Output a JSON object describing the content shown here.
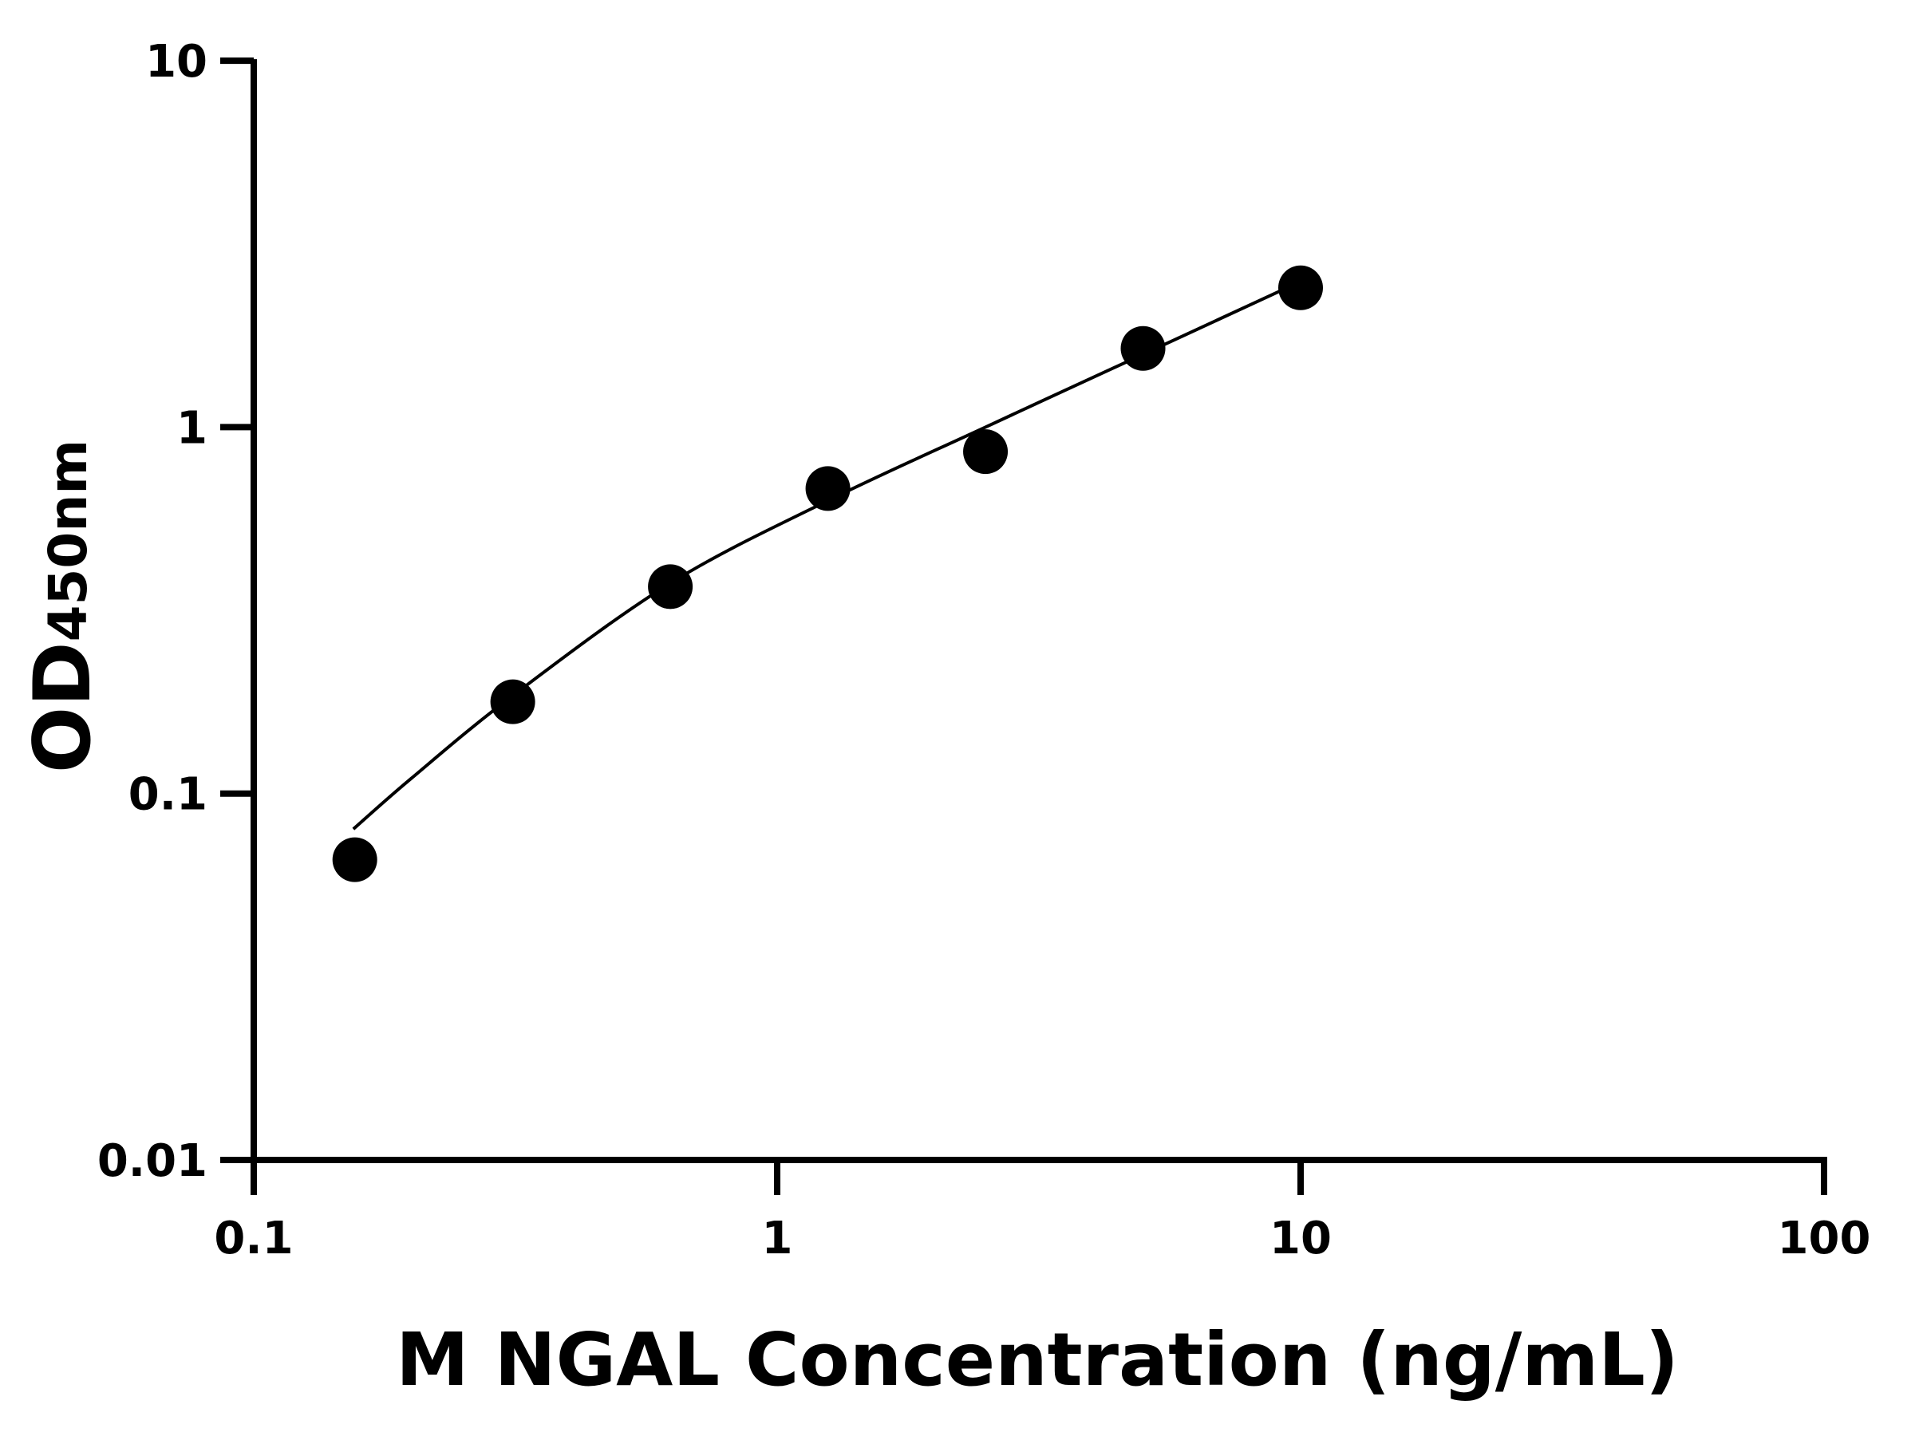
{
  "chart_data": {
    "type": "scatter",
    "title": "",
    "xlabel": "M NGAL Concentration (ng/mL)",
    "ylabel_main": "OD",
    "ylabel_sub": "450nm",
    "x_scale": "log",
    "y_scale": "log",
    "xlim": [
      0.1,
      100
    ],
    "ylim": [
      0.01,
      10
    ],
    "x_ticks": [
      "0.1",
      "1",
      "10",
      "100"
    ],
    "y_ticks": [
      "0.01",
      "0.1",
      "1",
      "10"
    ],
    "grid": false,
    "color": "#000000",
    "points": [
      {
        "x": 0.156,
        "y": 0.066
      },
      {
        "x": 0.3125,
        "y": 0.178
      },
      {
        "x": 0.625,
        "y": 0.367
      },
      {
        "x": 1.25,
        "y": 0.68
      },
      {
        "x": 2.5,
        "y": 0.857
      },
      {
        "x": 5,
        "y": 1.64
      },
      {
        "x": 10,
        "y": 2.4
      }
    ],
    "fit_curve": [
      {
        "x": 0.155,
        "y": 0.08
      },
      {
        "x": 0.2,
        "y": 0.11
      },
      {
        "x": 0.3125,
        "y": 0.185
      },
      {
        "x": 0.625,
        "y": 0.375
      },
      {
        "x": 1.25,
        "y": 0.63
      },
      {
        "x": 2.5,
        "y": 1.0
      },
      {
        "x": 5,
        "y": 1.58
      },
      {
        "x": 9.3,
        "y": 2.38
      }
    ]
  }
}
